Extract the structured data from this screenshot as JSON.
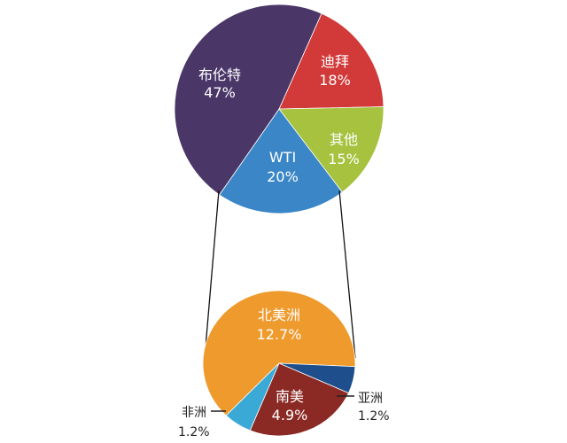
{
  "chart_data": [
    {
      "type": "pie",
      "slices": [
        {
          "label": "布伦特",
          "value_label": "47%",
          "value": 47,
          "color": "#4a3768"
        },
        {
          "label": "迪拜",
          "value_label": "18%",
          "value": 18,
          "color": "#d23a3a"
        },
        {
          "label": "其他",
          "value_label": "15%",
          "value": 15,
          "color": "#a6c23f"
        },
        {
          "label": "WTI",
          "value_label": "20%",
          "value": 20,
          "color": "#3b86c6"
        }
      ]
    },
    {
      "type": "pie",
      "slices": [
        {
          "label": "北美洲",
          "value_label": "12.7%",
          "value": 12.7,
          "color": "#ef9a2c"
        },
        {
          "label": "亚洲",
          "value_label": "1.2%",
          "value": 1.2,
          "color": "#1f4e8c"
        },
        {
          "label": "南美",
          "value_label": "4.9%",
          "value": 4.9,
          "color": "#8b2a24"
        },
        {
          "label": "非洲",
          "value_label": "1.2%",
          "value": 1.2,
          "color": "#3aa9d6"
        }
      ]
    }
  ]
}
